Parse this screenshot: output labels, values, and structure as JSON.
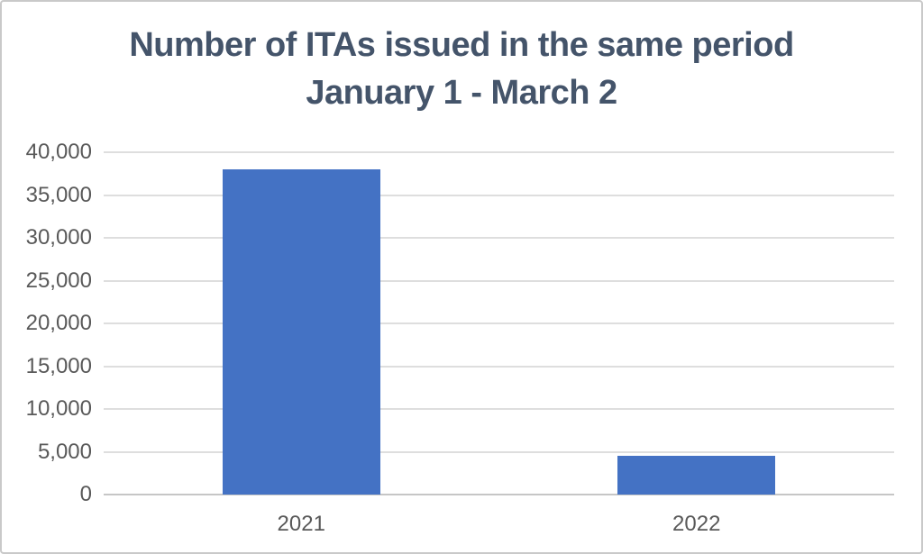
{
  "chart_data": {
    "type": "bar",
    "title_lines": [
      "Number of ITAs issued in the same period",
      "January 1 - March 2"
    ],
    "categories": [
      "2021",
      "2022"
    ],
    "values": [
      38000,
      4500
    ],
    "xlabel": "",
    "ylabel": "",
    "ylim": [
      0,
      40000
    ],
    "ytick_step": 5000,
    "ytick_labels": [
      "0",
      "5,000",
      "10,000",
      "15,000",
      "20,000",
      "25,000",
      "30,000",
      "35,000",
      "40,000"
    ],
    "grid": "horizontal-only",
    "legend": "none",
    "data_labels": "none",
    "colors": {
      "bar_fill": "#4472C4",
      "title_text": "#44546A",
      "tick_label_text": "#595959",
      "gridline": "#DEDEDE",
      "axis_line": "#C6C6C6",
      "background": "#FFFFFF",
      "frame_border": "#C9C9C9"
    }
  }
}
